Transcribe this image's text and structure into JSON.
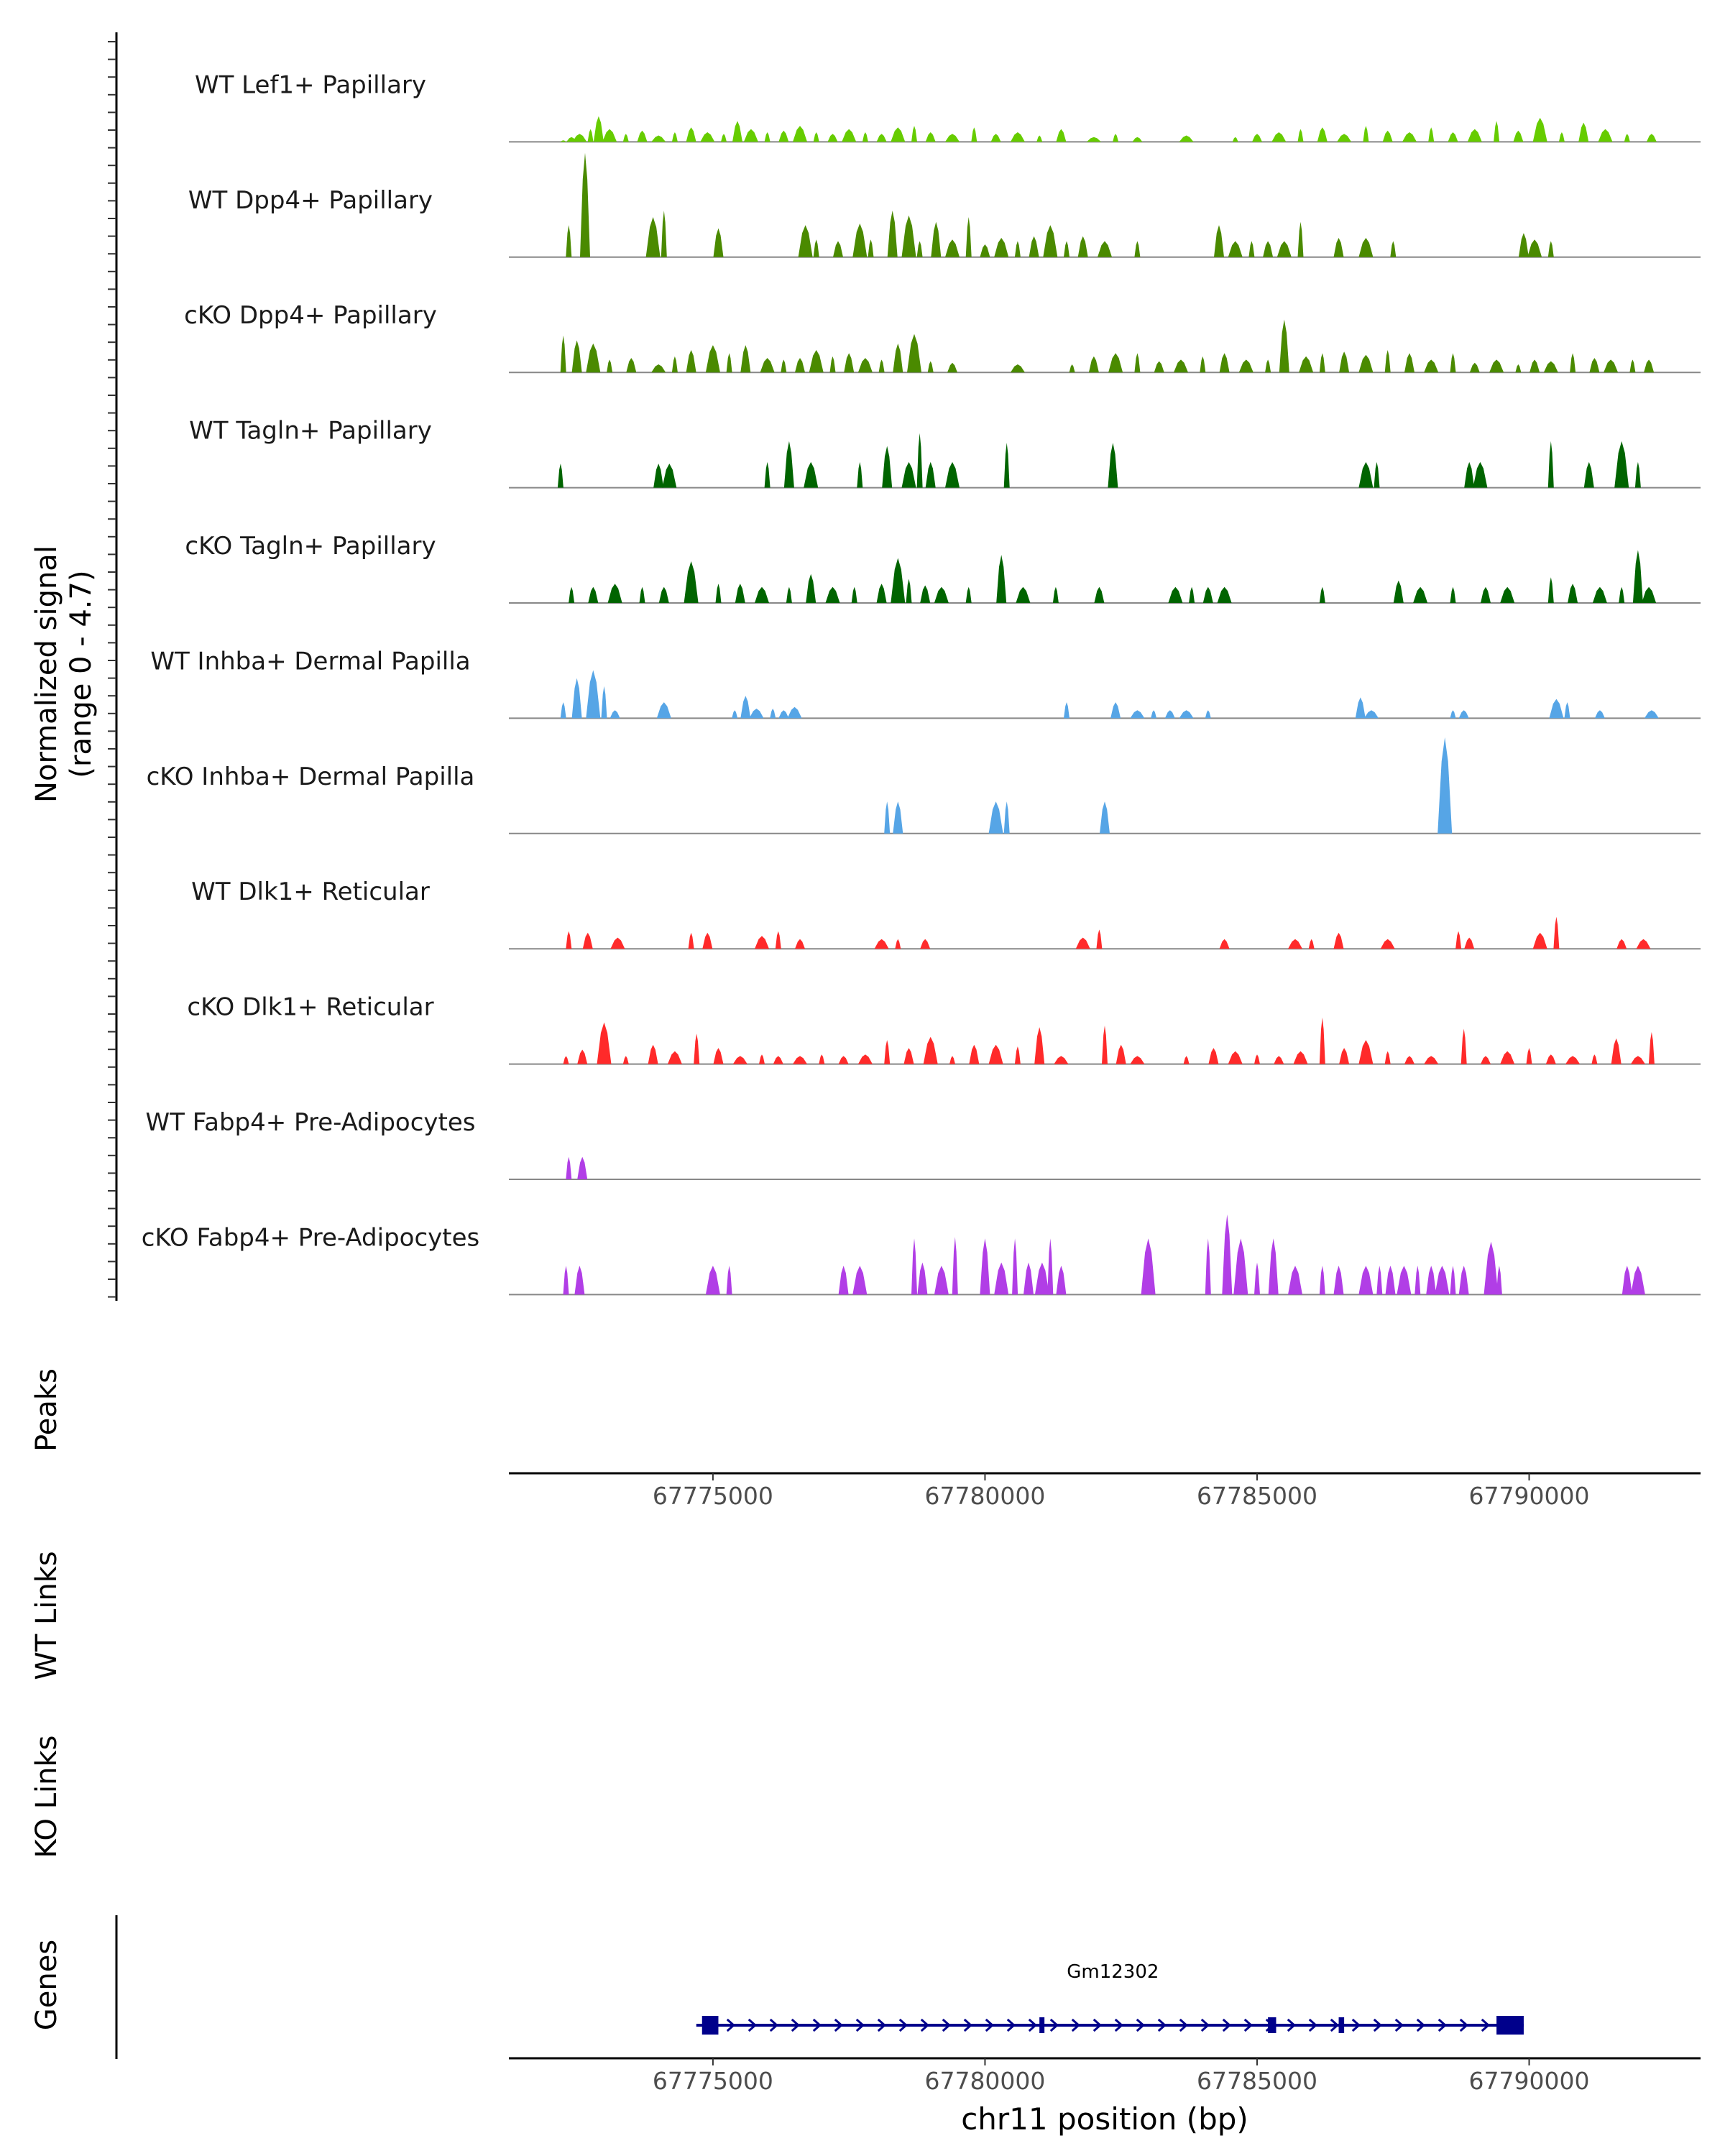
{
  "chart_data": {
    "type": "area",
    "title": "",
    "y_axis_label": "Normalized signal",
    "y_axis_sublabel": "(range 0 - 4.7)",
    "ylim": [
      0,
      4.7
    ],
    "xlabel": "chr11 position (bp)",
    "xlim": [
      67771250,
      67793150
    ],
    "xticks": [
      67775000,
      67780000,
      67785000,
      67790000
    ],
    "xtick_labels": [
      "67775000",
      "67780000",
      "67785000",
      "67790000"
    ],
    "series": [
      {
        "name": "WT Lef1+ Papillary",
        "color": "#66cc00",
        "x": [
          67772250,
          67772400,
          67772550,
          67772750,
          67772900,
          67773100,
          67773400,
          67773700,
          67774000,
          67774300,
          67774600,
          67774900,
          67775200,
          67775450,
          67775700,
          67776000,
          67776300,
          67776600,
          67776900,
          67777200,
          67777500,
          67777800,
          67778100,
          67778400,
          67778700,
          67779000,
          67779400,
          67779800,
          67780200,
          67780600,
          67781000,
          67781400,
          67782000,
          67782400,
          67782800,
          67783700,
          67784600,
          67785000,
          67785400,
          67785800,
          67786200,
          67786600,
          67787000,
          67787400,
          67787800,
          67788200,
          67788600,
          67789000,
          67789400,
          67789800,
          67790200,
          67790600,
          67791000,
          67791400,
          67791800,
          67792250
        ],
        "values": [
          0.1,
          0.3,
          0.5,
          0.8,
          1.6,
          0.8,
          0.5,
          0.7,
          0.4,
          0.6,
          0.9,
          0.6,
          0.5,
          1.3,
          0.8,
          0.6,
          0.7,
          1.0,
          0.6,
          0.5,
          0.8,
          0.6,
          0.5,
          0.9,
          1.0,
          0.6,
          0.5,
          0.9,
          0.5,
          0.6,
          0.4,
          0.8,
          0.3,
          0.5,
          0.3,
          0.4,
          0.3,
          0.5,
          0.6,
          0.8,
          0.9,
          0.5,
          1.0,
          0.7,
          0.6,
          0.9,
          0.6,
          0.8,
          1.3,
          0.7,
          1.5,
          0.6,
          1.2,
          0.8,
          0.5,
          0.5
        ]
      },
      {
        "name": "WT Dpp4+ Papillary",
        "color": "#4a8a00",
        "x": [
          67772350,
          67772650,
          67773900,
          67774100,
          67775100,
          67776700,
          67776900,
          67777300,
          67777700,
          67777900,
          67778300,
          67778600,
          67778800,
          67779100,
          67779400,
          67779700,
          67780000,
          67780300,
          67780600,
          67780900,
          67781200,
          67781500,
          67781800,
          67782200,
          67782800,
          67784300,
          67784600,
          67784900,
          67785200,
          67785500,
          67785800,
          67786500,
          67787000,
          67787500,
          67789900,
          67790100,
          67790400
        ],
        "values": [
          2.0,
          6.5,
          2.5,
          2.9,
          1.8,
          2.0,
          1.1,
          1.0,
          2.1,
          1.1,
          2.9,
          2.6,
          1.0,
          2.2,
          1.1,
          2.5,
          0.8,
          1.2,
          1.0,
          1.3,
          2.0,
          1.0,
          1.3,
          1.0,
          1.0,
          2.0,
          1.0,
          1.0,
          1.0,
          1.0,
          2.2,
          1.2,
          1.2,
          1.0,
          1.5,
          1.1,
          1.0
        ]
      },
      {
        "name": "cKO Dpp4+ Papillary",
        "color": "#4a8a00",
        "x": [
          67772250,
          67772500,
          67772800,
          67773100,
          67773500,
          67774000,
          67774300,
          67774600,
          67775000,
          67775300,
          67775600,
          67776000,
          67776300,
          67776600,
          67776900,
          67777200,
          67777500,
          67777800,
          67778100,
          67778400,
          67778700,
          67779000,
          67779400,
          67780600,
          67781600,
          67782000,
          67782400,
          67782800,
          67783200,
          67783600,
          67784000,
          67784400,
          67784800,
          67785200,
          67785500,
          67785900,
          67786200,
          67786600,
          67787000,
          67787400,
          67787800,
          67788200,
          67788600,
          67789000,
          67789400,
          67789800,
          67790100,
          67790400,
          67790800,
          67791200,
          67791500,
          67791900,
          67792200
        ],
        "values": [
          2.3,
          2.0,
          1.8,
          0.8,
          0.9,
          0.5,
          1.0,
          1.4,
          1.7,
          1.2,
          1.7,
          0.9,
          0.8,
          0.9,
          1.4,
          1.0,
          1.2,
          0.9,
          0.8,
          1.8,
          2.4,
          0.7,
          0.6,
          0.5,
          0.5,
          1.0,
          1.2,
          1.2,
          0.7,
          0.8,
          1.0,
          1.2,
          0.8,
          0.8,
          3.3,
          1.0,
          1.2,
          1.3,
          1.1,
          1.4,
          1.2,
          0.8,
          1.2,
          0.6,
          0.8,
          0.5,
          0.8,
          0.7,
          1.2,
          0.9,
          0.8,
          0.8,
          0.8
        ]
      },
      {
        "name": "WT Tagln+ Papillary",
        "color": "#006400",
        "x": [
          67772200,
          67774000,
          67774200,
          67776000,
          67776400,
          67776800,
          67777700,
          67778200,
          67778600,
          67778800,
          67779000,
          67779400,
          67780400,
          67782350,
          67787000,
          67787200,
          67788900,
          67789100,
          67790400,
          67791100,
          67791700,
          67792000
        ],
        "values": [
          1.5,
          1.5,
          1.5,
          1.6,
          2.9,
          1.6,
          1.6,
          2.6,
          1.6,
          3.4,
          1.6,
          1.6,
          2.8,
          2.8,
          1.6,
          1.6,
          1.6,
          1.6,
          2.9,
          1.6,
          2.9,
          1.6
        ]
      },
      {
        "name": "cKO Tagln+ Papillary",
        "color": "#006400",
        "x": [
          67772400,
          67772800,
          67773200,
          67773700,
          67774100,
          67774600,
          67775100,
          67775500,
          67775900,
          67776400,
          67776800,
          67777200,
          67777600,
          67778100,
          67778400,
          67778600,
          67778900,
          67779200,
          67779700,
          67780300,
          67780700,
          67781300,
          67782100,
          67783500,
          67783800,
          67784100,
          67784400,
          67786200,
          67787600,
          67788000,
          67788600,
          67789200,
          67789600,
          67790400,
          67790800,
          67791300,
          67791700,
          67792000,
          67792200
        ],
        "values": [
          1.0,
          1.0,
          1.2,
          1.0,
          1.0,
          2.6,
          1.2,
          1.2,
          1.0,
          1.0,
          1.8,
          1.0,
          1.0,
          1.2,
          2.8,
          1.5,
          1.1,
          1.0,
          1.0,
          3.0,
          1.0,
          1.0,
          1.0,
          1.0,
          1.0,
          1.0,
          1.0,
          1.0,
          1.4,
          1.0,
          1.0,
          1.0,
          1.0,
          1.6,
          1.2,
          1.0,
          1.0,
          3.3,
          1.0
        ]
      },
      {
        "name": "WT Inhba+ Dermal Papilla",
        "color": "#56a5e6",
        "x": [
          67772250,
          67772500,
          67772800,
          67773000,
          67773200,
          67774100,
          67775400,
          67775600,
          67775800,
          67776100,
          67776300,
          67776500,
          67781500,
          67782400,
          67782800,
          67783100,
          67783400,
          67783700,
          67784100,
          67786900,
          67787100,
          67788600,
          67788800,
          67790500,
          67790700,
          67791300,
          67792250
        ],
        "values": [
          1.0,
          2.5,
          3.0,
          2.0,
          0.5,
          1.0,
          0.5,
          1.4,
          0.6,
          0.6,
          0.5,
          0.7,
          1.0,
          1.0,
          0.5,
          0.5,
          0.5,
          0.5,
          0.5,
          1.3,
          0.5,
          0.5,
          0.5,
          1.2,
          1.0,
          0.5,
          0.5
        ]
      },
      {
        "name": "cKO Inhba+ Dermal Papilla",
        "color": "#56a5e6",
        "x": [
          67778200,
          67778400,
          67780200,
          67780400,
          67782200,
          67788450
        ],
        "values": [
          2.0,
          2.0,
          2.0,
          2.0,
          2.0,
          6.0
        ]
      },
      {
        "name": "WT Dlk1+ Reticular",
        "color": "#ff2a2a",
        "x": [
          67772350,
          67772700,
          67773250,
          67774600,
          67774900,
          67775900,
          67776200,
          67776600,
          67778100,
          67778400,
          67778900,
          67781800,
          67782100,
          67784400,
          67785700,
          67786000,
          67786500,
          67787400,
          67788700,
          67788900,
          67790200,
          67790500,
          67791700,
          67792100
        ],
        "values": [
          1.1,
          1.0,
          0.7,
          1.0,
          1.0,
          0.8,
          1.1,
          0.6,
          0.6,
          0.6,
          0.6,
          0.7,
          1.2,
          0.6,
          0.6,
          0.6,
          1.0,
          0.6,
          1.1,
          0.7,
          1.0,
          2.0,
          0.6,
          0.6
        ]
      },
      {
        "name": "cKO Dlk1+ Reticular",
        "color": "#ff2a2a",
        "x": [
          67772300,
          67772600,
          67773000,
          67773400,
          67773900,
          67774300,
          67774700,
          67775100,
          67775500,
          67775900,
          67776200,
          67776600,
          67777000,
          67777400,
          67777800,
          67778200,
          67778600,
          67779000,
          67779400,
          67779800,
          67780200,
          67780600,
          67781000,
          67781400,
          67782200,
          67782500,
          67782800,
          67783700,
          67784200,
          67784600,
          67785000,
          67785400,
          67785800,
          67786200,
          67786600,
          67787000,
          67787400,
          67787800,
          67788200,
          67788800,
          67789200,
          67789600,
          67790000,
          67790400,
          67790800,
          67791200,
          67791600,
          67792000,
          67792250
        ],
        "values": [
          0.5,
          0.9,
          2.6,
          0.5,
          1.2,
          0.8,
          1.9,
          1.0,
          0.5,
          0.6,
          0.5,
          0.5,
          0.6,
          0.5,
          0.6,
          1.5,
          1.0,
          1.7,
          0.5,
          1.2,
          1.2,
          1.1,
          2.3,
          0.5,
          2.4,
          1.2,
          0.5,
          0.5,
          1.0,
          0.8,
          0.6,
          0.5,
          0.8,
          2.9,
          1.0,
          1.5,
          0.8,
          0.5,
          0.5,
          2.2,
          0.5,
          0.8,
          1.0,
          0.6,
          0.5,
          0.6,
          1.6,
          0.5,
          2.0
        ]
      },
      {
        "name": "WT Fabp4+ Pre-Adipocytes",
        "color": "#b13ee6",
        "x": [
          67772350,
          67772600
        ],
        "values": [
          1.4,
          1.4
        ]
      },
      {
        "name": "cKO Fabp4+ Pre-Adipocytes",
        "color": "#b13ee6",
        "x": [
          67772300,
          67772550,
          67775000,
          67775300,
          67777400,
          67777700,
          67778700,
          67778850,
          67779200,
          67779450,
          67780000,
          67780300,
          67780550,
          67780800,
          67781050,
          67781200,
          67781400,
          67783000,
          67784100,
          67784450,
          67784700,
          67785000,
          67785300,
          67785700,
          67786200,
          67786500,
          67787000,
          67787250,
          67787450,
          67787700,
          67787950,
          67788200,
          67788400,
          67788600,
          67788800,
          67789300,
          67789450,
          67791800,
          67792000
        ],
        "values": [
          1.8,
          1.8,
          1.8,
          1.8,
          1.8,
          1.8,
          3.5,
          2.0,
          1.8,
          3.6,
          3.5,
          2.0,
          3.5,
          2.0,
          2.0,
          3.5,
          1.8,
          3.5,
          3.5,
          5.0,
          3.5,
          2.0,
          3.5,
          1.8,
          1.8,
          1.8,
          1.8,
          1.8,
          1.8,
          1.8,
          1.8,
          1.8,
          1.8,
          1.8,
          1.8,
          3.3,
          1.8,
          1.8,
          1.8
        ]
      }
    ],
    "panels": {
      "peaks_label": "Peaks",
      "wt_links_label": "WT Links",
      "ko_links_label": "KO Links",
      "genes_label": "Genes"
    },
    "gene": {
      "name": "Gm12302",
      "start": 67774800,
      "end": 67789900,
      "strand": "+",
      "color": "#00008b",
      "exons": [
        [
          67774800,
          67775100
        ],
        [
          67781000,
          67781050
        ],
        [
          67785200,
          67785350
        ],
        [
          67786500,
          67786600
        ],
        [
          67789400,
          67789900
        ]
      ]
    }
  }
}
